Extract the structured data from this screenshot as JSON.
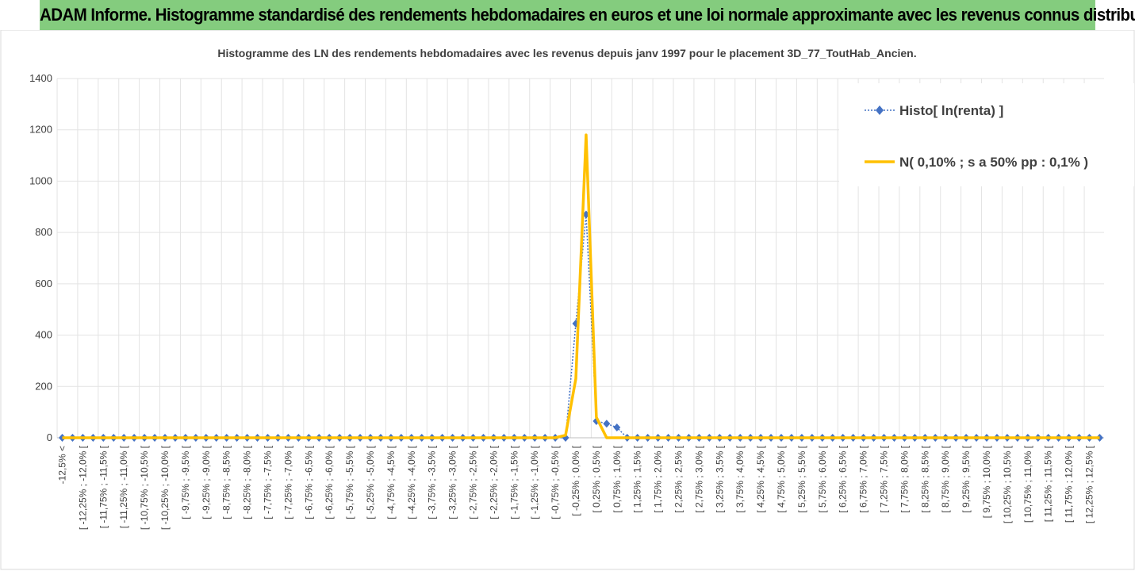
{
  "header": {
    "title": "ADAM Informe. Histogramme standardisé des rendements hebdomadaires en euros et une loi normale approximante avec les revenus connus distribués"
  },
  "chart_data": {
    "type": "line",
    "title": "Histogramme  des LN des rendements hebdomadaires avec les revenus depuis janv 1997 pour le placement 3D_77_ToutHab_Ancien.",
    "categories": [
      "-12,5% <",
      null,
      "[ -12,25% ; -12,0% [",
      null,
      "[ -11,75% ; -11,5% [",
      null,
      "[ -11,25% ; -11,0% [",
      null,
      "[ -10,75% ; -10,5% [",
      null,
      "[ -10,25% ; -10,0% [",
      null,
      "[ -9,75% ; -9,5% [",
      null,
      "[ -9,25% ; -9,0% [",
      null,
      "[ -8,75% ; -8,5% [",
      null,
      "[ -8,25% ; -8,0% [",
      null,
      "[ -7,75% ; -7,5% [",
      null,
      "[ -7,25% ; -7,0% [",
      null,
      "[ -6,75% ; -6,5% [",
      null,
      "[ -6,25% ; -6,0% [",
      null,
      "[ -5,75% ; -5,5% [",
      null,
      "[ -5,25% ; -5,0% [",
      null,
      "[ -4,75% ; -4,5% [",
      null,
      "[ -4,25% ; -4,0% [",
      null,
      "[ -3,75% ; -3,5% [",
      null,
      "[ -3,25% ; -3,0% [",
      null,
      "[ -2,75% ; -2,5% [",
      null,
      "[ -2,25% ; -2,0% [",
      null,
      "[ -1,75% ; -1,5% [",
      null,
      "[ -1,25% ; -1,0% [",
      null,
      "[ -0,75% ; -0,5% [",
      null,
      "[ -0,25% ; 0,0% [",
      null,
      "[ 0,25% ; 0,5% [",
      null,
      "[ 0,75% ; 1,0% [",
      null,
      "[ 1,25% ; 1,5% [",
      null,
      "[ 1,75% ; 2,0% [",
      null,
      "[ 2,25% ; 2,5% [",
      null,
      "[ 2,75% ; 3,0% [",
      null,
      "[ 3,25% ; 3,5% [",
      null,
      "[ 3,75% ; 4,0% [",
      null,
      "[ 4,25% ; 4,5% [",
      null,
      "[ 4,75% ; 5,0% [",
      null,
      "[ 5,25% ; 5,5% [",
      null,
      "[ 5,75% ; 6,0% [",
      null,
      "[ 6,25% ; 6,5% [",
      null,
      "[ 6,75% ; 7,0% [",
      null,
      "[ 7,25% ; 7,5% [",
      null,
      "[ 7,75% ; 8,0% [",
      null,
      "[ 8,25% ; 8,5% [",
      null,
      "[ 8,75% ; 9,0% [",
      null,
      "[ 9,25% ; 9,5% [",
      null,
      "[ 9,75% ; 10,0% [",
      null,
      "[ 10,25% ; 10,5% [",
      null,
      "[ 10,75% ; 11,0% [",
      null,
      "[ 11,25% ; 11,5% [",
      null,
      "[ 11,75% ; 12,0% [",
      null,
      "[ 12,25% ; 12,5% [",
      null
    ],
    "series": [
      {
        "name": "Histo[ ln(renta) ]",
        "color": "#4472c4",
        "values": [
          0,
          0,
          0,
          0,
          0,
          0,
          0,
          0,
          0,
          0,
          0,
          0,
          0,
          0,
          0,
          0,
          0,
          0,
          0,
          0,
          0,
          0,
          0,
          0,
          0,
          0,
          0,
          0,
          0,
          0,
          0,
          0,
          0,
          0,
          0,
          0,
          0,
          0,
          0,
          0,
          0,
          0,
          0,
          0,
          0,
          0,
          0,
          0,
          0,
          0,
          445,
          870,
          65,
          55,
          40,
          0,
          0,
          0,
          0,
          0,
          0,
          0,
          0,
          0,
          0,
          0,
          0,
          0,
          0,
          0,
          0,
          0,
          0,
          0,
          0,
          0,
          0,
          0,
          0,
          0,
          0,
          0,
          0,
          0,
          0,
          0,
          0,
          0,
          0,
          0,
          0,
          0,
          0,
          0,
          0,
          0,
          0,
          0,
          0,
          0,
          0,
          0
        ]
      },
      {
        "name": "N( 0,10% ; s a 50% pp : 0,1% )",
        "color": "#ffc000",
        "values": [
          0,
          0,
          0,
          0,
          0,
          0,
          0,
          0,
          0,
          0,
          0,
          0,
          0,
          0,
          0,
          0,
          0,
          0,
          0,
          0,
          0,
          0,
          0,
          0,
          0,
          0,
          0,
          0,
          0,
          0,
          0,
          0,
          0,
          0,
          0,
          0,
          0,
          0,
          0,
          0,
          0,
          0,
          0,
          0,
          0,
          0,
          0,
          0,
          0,
          10,
          230,
          1180,
          80,
          0,
          0,
          0,
          0,
          0,
          0,
          0,
          0,
          0,
          0,
          0,
          0,
          0,
          0,
          0,
          0,
          0,
          0,
          0,
          0,
          0,
          0,
          0,
          0,
          0,
          0,
          0,
          0,
          0,
          0,
          0,
          0,
          0,
          0,
          0,
          0,
          0,
          0,
          0,
          0,
          0,
          0,
          0,
          0,
          0,
          0,
          0,
          0,
          0
        ]
      }
    ],
    "ylim": [
      0,
      1400
    ],
    "yticks": [
      0,
      200,
      400,
      600,
      800,
      1000,
      1200,
      1400
    ],
    "grid": true,
    "legend": "top-right"
  }
}
